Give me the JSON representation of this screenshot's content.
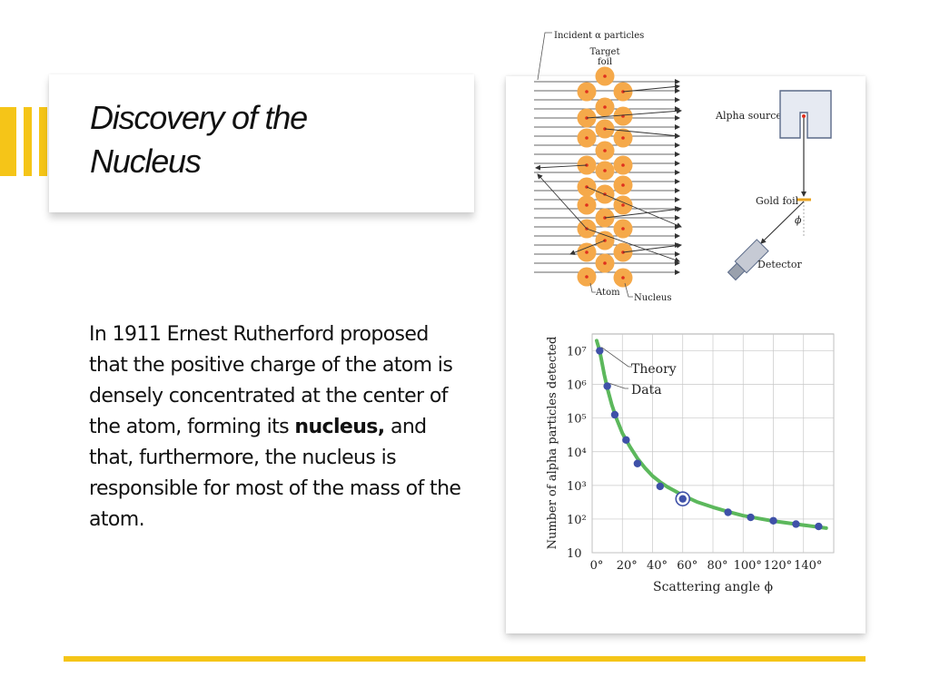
{
  "slide": {
    "title_line1": "Discovery of the",
    "title_line2": "Nucleus",
    "body": {
      "intro": "In 1911 Ernest Rutherford proposed that the positive charge of the atom is densely concentrated at the center of the atom, forming its ",
      "emphasis": "nucleus,",
      "rest": " and that, furthermore, the nucleus is responsible for most of the mass of the atom."
    }
  },
  "colors": {
    "accent": "#f5c518",
    "curve": "#5cb85c",
    "data_point": "#3f51a8",
    "atom": "#f5a94a",
    "nucleus_dot": "#e0301e"
  },
  "figure": {
    "labels": {
      "incident": "Incident α particles",
      "target_1": "Target",
      "target_2": "foil",
      "alpha_source": "Alpha source",
      "gold_foil": "Gold foil",
      "phi": "ϕ",
      "detector": "Detector",
      "atom": "Atom",
      "nucleus": "Nucleus"
    }
  },
  "chart_data": {
    "type": "scatter",
    "xlabel": "Scattering angle ϕ",
    "ylabel": "Number of alpha particles detected",
    "xlim": [
      0,
      160
    ],
    "ylim": [
      1,
      7.5
    ],
    "y_scale": "log10",
    "grid": true,
    "x_ticks": [
      0,
      20,
      40,
      60,
      80,
      100,
      120,
      140
    ],
    "x_tick_labels": [
      "0°",
      "20°",
      "40°",
      "60°",
      "80°",
      "100°",
      "120°",
      "140°"
    ],
    "y_ticks": [
      1,
      2,
      3,
      4,
      5,
      6,
      7
    ],
    "y_tick_labels": [
      "10",
      "10²",
      "10³",
      "10⁴",
      "10⁵",
      "10⁶",
      "10⁷"
    ],
    "series": [
      {
        "name": "Theory",
        "kind": "line",
        "x": [
          3,
          5,
          8,
          10,
          13,
          16,
          20,
          25,
          30,
          35,
          40,
          45,
          50,
          55,
          60,
          70,
          80,
          90,
          100,
          110,
          120,
          130,
          140,
          150,
          155
        ],
        "log10_y": [
          7.3,
          7.0,
          6.3,
          5.9,
          5.4,
          5.0,
          4.55,
          4.15,
          3.8,
          3.52,
          3.28,
          3.1,
          2.95,
          2.83,
          2.7,
          2.5,
          2.35,
          2.22,
          2.1,
          2.02,
          1.94,
          1.88,
          1.82,
          1.76,
          1.73
        ]
      },
      {
        "name": "Data",
        "kind": "points",
        "x": [
          5,
          10,
          15,
          22.5,
          30,
          45,
          60,
          90,
          105,
          120,
          135,
          150
        ],
        "log10_y": [
          7.0,
          5.95,
          5.1,
          4.35,
          3.65,
          2.97,
          2.6,
          2.2,
          2.05,
          1.95,
          1.85,
          1.78
        ],
        "highlighted_index": 6
      }
    ],
    "legend": [
      "Theory",
      "Data"
    ],
    "legend_placement": "top-left"
  }
}
